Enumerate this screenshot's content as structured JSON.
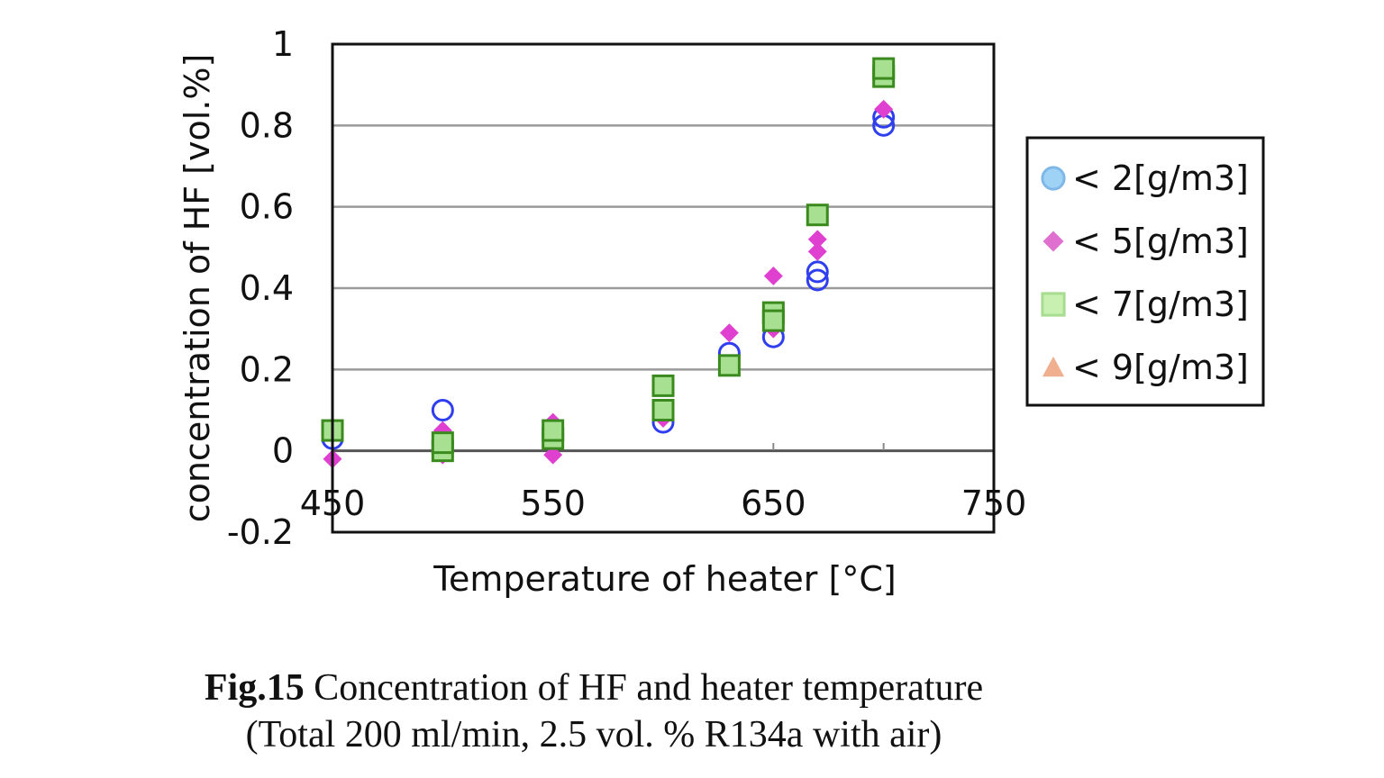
{
  "chart_data": {
    "type": "scatter",
    "title": "",
    "xlabel": "Temperature of heater [°C]",
    "ylabel": "concentration of HF [vol.%]",
    "xlim": [
      450,
      750
    ],
    "ylim": [
      -0.2,
      1
    ],
    "x_ticks": [
      "450",
      "550",
      "650",
      "750"
    ],
    "y_ticks": [
      "-0.2",
      "0",
      "0.2",
      "0.4",
      "0.6",
      "0.8",
      "1"
    ],
    "grid": "horizontal",
    "legend_position": "right",
    "series": [
      {
        "name": "< 2[g/m3]",
        "marker": "circle",
        "color": "#2f3ff0",
        "legend_color": "#9fd3f5",
        "points": [
          [
            450,
            0.03
          ],
          [
            500,
            0.1
          ],
          [
            500,
            0.02
          ],
          [
            550,
            0.04
          ],
          [
            600,
            0.07
          ],
          [
            630,
            0.24
          ],
          [
            650,
            0.28
          ],
          [
            670,
            0.42
          ],
          [
            670,
            0.44
          ],
          [
            700,
            0.8
          ],
          [
            700,
            0.82
          ]
        ]
      },
      {
        "name": "< 5[g/m3]",
        "marker": "diamond",
        "color": "#e040d0",
        "legend_color": "#e070d0",
        "points": [
          [
            450,
            -0.02
          ],
          [
            500,
            0.05
          ],
          [
            500,
            -0.01
          ],
          [
            550,
            0.07
          ],
          [
            550,
            -0.01
          ],
          [
            600,
            0.08
          ],
          [
            630,
            0.29
          ],
          [
            650,
            0.43
          ],
          [
            650,
            0.3
          ],
          [
            670,
            0.49
          ],
          [
            670,
            0.52
          ],
          [
            700,
            0.84
          ]
        ]
      },
      {
        "name": "< 7[g/m3]",
        "marker": "square",
        "color": "#3b8a1e",
        "fill": "#a6e090",
        "legend_color": "#c8f0b0",
        "points": [
          [
            450,
            0.05
          ],
          [
            500,
            0.0
          ],
          [
            500,
            0.02
          ],
          [
            550,
            0.03
          ],
          [
            550,
            0.05
          ],
          [
            600,
            0.1
          ],
          [
            600,
            0.16
          ],
          [
            630,
            0.21
          ],
          [
            650,
            0.34
          ],
          [
            650,
            0.32
          ],
          [
            670,
            0.58
          ],
          [
            700,
            0.92
          ],
          [
            700,
            0.94
          ]
        ]
      },
      {
        "name": "< 9[g/m3]",
        "marker": "triangle",
        "color": "#e09060",
        "legend_color": "#f0b090",
        "points": []
      }
    ]
  },
  "caption": {
    "label": "Fig.15",
    "text": " Concentration of HF and heater temperature",
    "line2": "(Total 200 ml/min, 2.5 vol. % R134a with air)"
  }
}
